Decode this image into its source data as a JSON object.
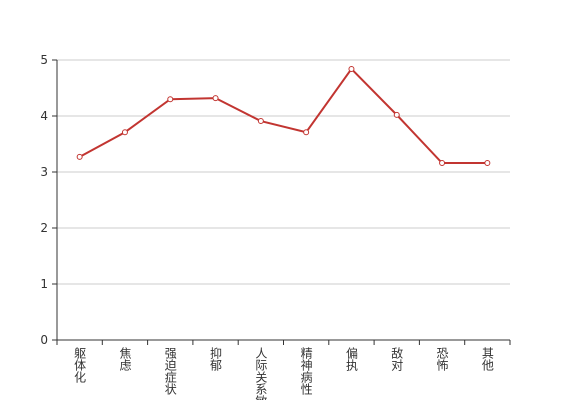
{
  "chart_data": {
    "type": "line",
    "categories": [
      "躯体化",
      "焦虑",
      "强迫症状",
      "抑郁",
      "人际关系敏感",
      "精神病性",
      "偏执",
      "敌对",
      "恐怖",
      "其他"
    ],
    "values": [
      3.27,
      3.71,
      4.3,
      4.32,
      3.91,
      3.71,
      4.84,
      4.02,
      3.16,
      3.16
    ],
    "color": "#c23531",
    "ylim": [
      0,
      5
    ],
    "yticks": [
      0,
      1,
      2,
      3,
      4,
      5
    ],
    "grid": true
  }
}
